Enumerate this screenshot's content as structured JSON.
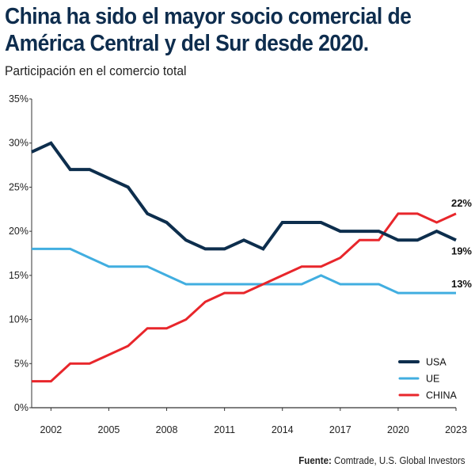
{
  "header": {
    "title_line1": "China ha sido el mayor socio comercial de",
    "title_line2": "América Central y del Sur desde 2020.",
    "subtitle": "Participación en el comercio total"
  },
  "source": {
    "label": "Fuente:",
    "text": " Comtrade, U.S. Global Investors"
  },
  "chart_data": {
    "type": "line",
    "title": "China ha sido el mayor socio comercial de América Central y del Sur desde 2020.",
    "subtitle": "Participación en el comercio total",
    "xlabel": "",
    "ylabel": "",
    "x": [
      2001,
      2002,
      2003,
      2004,
      2005,
      2006,
      2007,
      2008,
      2009,
      2010,
      2011,
      2012,
      2013,
      2014,
      2015,
      2016,
      2017,
      2018,
      2019,
      2020,
      2021,
      2022,
      2023
    ],
    "xlim": [
      2001,
      2023
    ],
    "ylim": [
      0,
      35
    ],
    "x_ticks": [
      2002,
      2005,
      2008,
      2011,
      2014,
      2017,
      2020,
      2023
    ],
    "y_ticks": [
      0,
      5,
      10,
      15,
      20,
      25,
      30,
      35
    ],
    "y_tick_labels": [
      "0%",
      "5%",
      "10%",
      "15%",
      "20%",
      "25%",
      "30%",
      "35%"
    ],
    "grid": false,
    "legend_position": "bottom-right",
    "series": [
      {
        "name": "USA",
        "color": "#0d2e4d",
        "end_label": "19%",
        "values": [
          29,
          30,
          27,
          27,
          26,
          25,
          22,
          21,
          19,
          18,
          18,
          19,
          18,
          21,
          21,
          21,
          20,
          20,
          20,
          19,
          19,
          20,
          19
        ]
      },
      {
        "name": "UE",
        "color": "#41aee0",
        "end_label": "13%",
        "values": [
          18,
          18,
          18,
          17,
          16,
          16,
          16,
          15,
          14,
          14,
          14,
          14,
          14,
          14,
          14,
          15,
          14,
          14,
          14,
          13,
          13,
          13,
          13
        ]
      },
      {
        "name": "CHINA",
        "color": "#e8262b",
        "end_label": "22%",
        "values": [
          3,
          3,
          5,
          5,
          6,
          7,
          9,
          9,
          10,
          12,
          13,
          13,
          14,
          15,
          16,
          16,
          17,
          19,
          19,
          22,
          22,
          21,
          22
        ]
      }
    ]
  }
}
